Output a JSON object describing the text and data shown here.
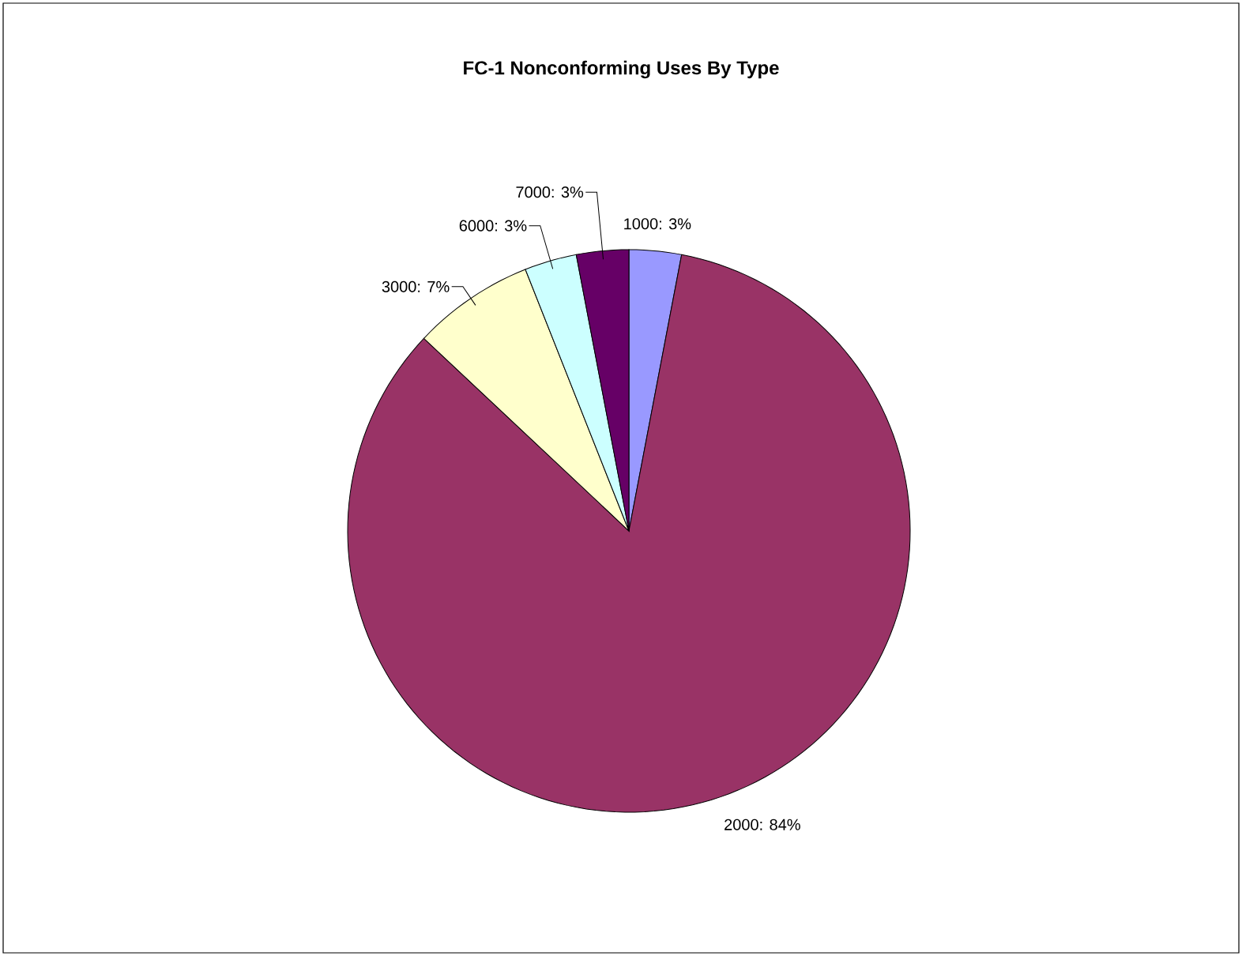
{
  "chart_data": {
    "type": "pie",
    "title": "FC-1 Nonconforming Uses By Type",
    "categories": [
      "1000:  3%",
      "2000:  84%",
      "3000:  7%",
      "6000:  3%",
      "7000:  3%"
    ],
    "values": [
      3,
      84,
      7,
      3,
      3
    ],
    "colors": [
      "#9999ff",
      "#993366",
      "#ffffcc",
      "#ccffff",
      "#660066"
    ]
  }
}
